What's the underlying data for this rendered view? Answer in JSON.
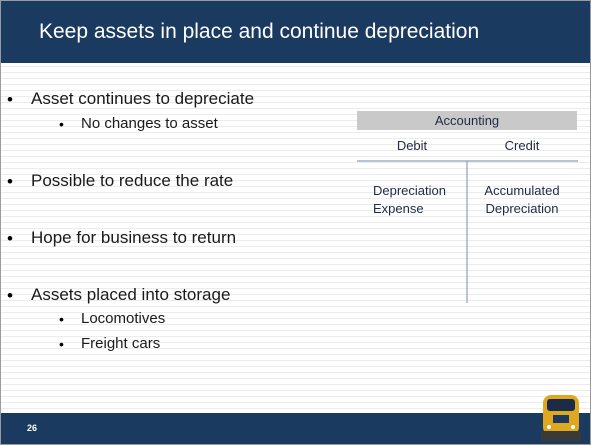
{
  "title": "Keep assets in place and continue depreciation",
  "bullets": [
    {
      "text": "Asset continues to depreciate",
      "sub": [
        "No changes to asset"
      ]
    },
    {
      "text": "Possible to reduce the rate",
      "sub": []
    },
    {
      "text": "Hope for business to return",
      "sub": []
    },
    {
      "text": "Assets placed into storage",
      "sub": [
        "Locomotives",
        "Freight cars"
      ]
    }
  ],
  "t_account": {
    "header": "Accounting",
    "debit": "Debit",
    "credit": "Credit",
    "debit_entry": [
      "Depreciation",
      "Expense"
    ],
    "credit_entry": [
      "Accumulated",
      "Depreciation"
    ]
  },
  "page_number": "26"
}
